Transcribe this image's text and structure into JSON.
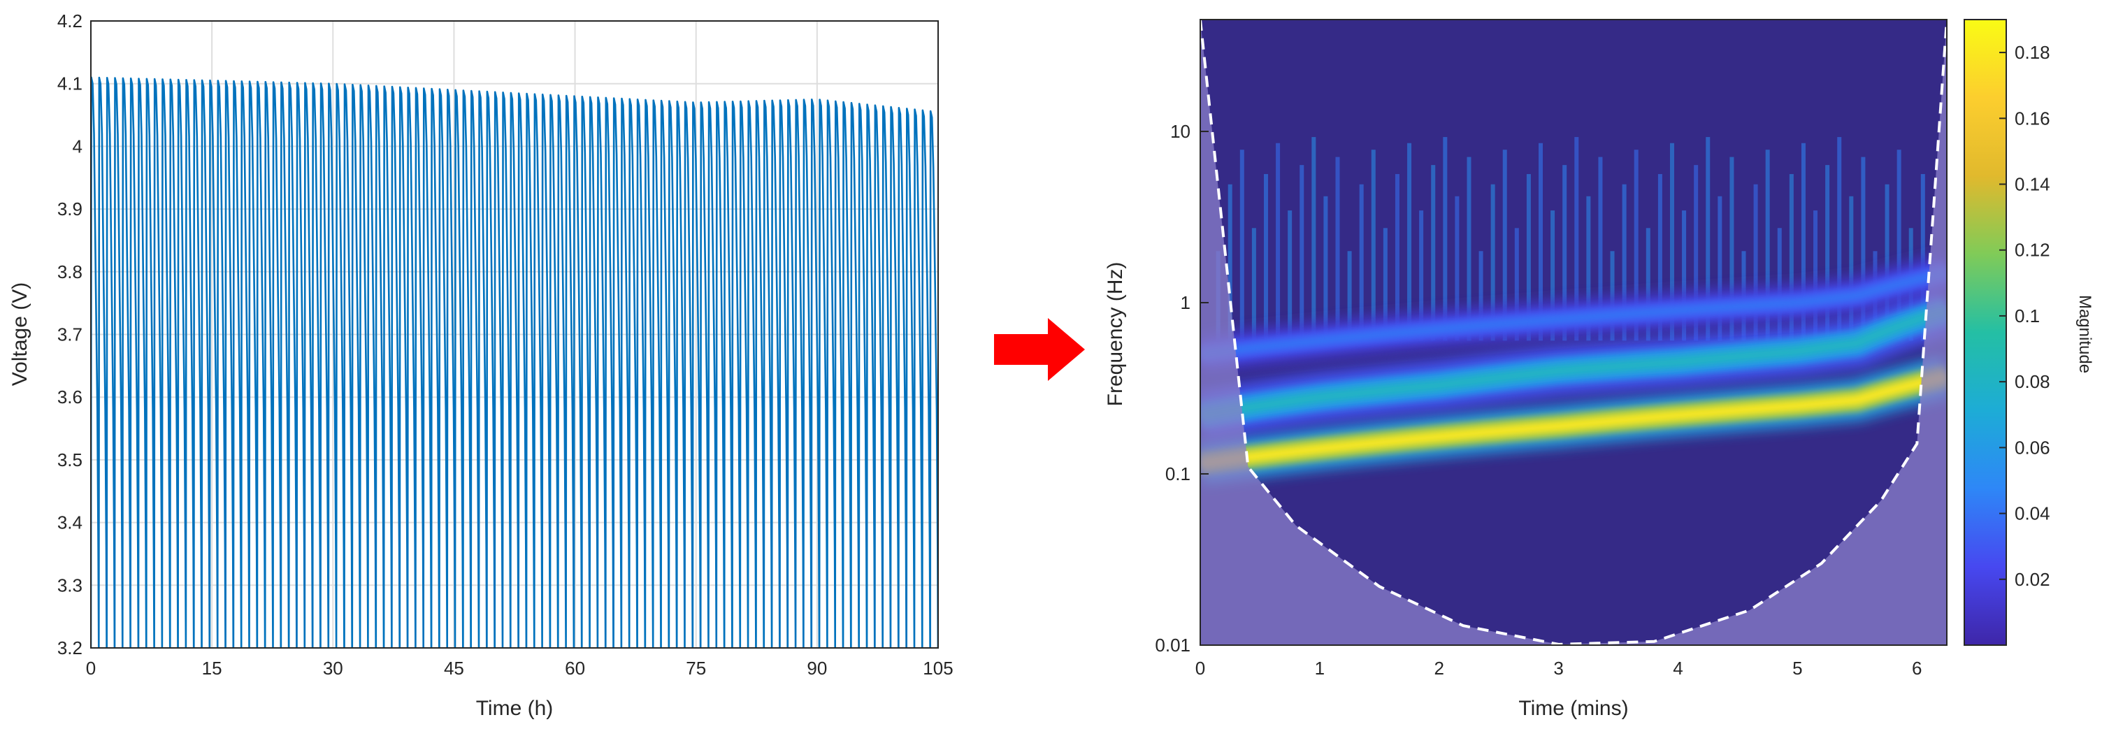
{
  "chart_data": [
    {
      "type": "line",
      "title": "",
      "xlabel": "Time (h)",
      "ylabel": "Voltage (V)",
      "xlim": [
        0,
        105
      ],
      "ylim": [
        3.2,
        4.2
      ],
      "x_ticks": [
        0,
        15,
        30,
        45,
        60,
        75,
        90,
        105
      ],
      "y_ticks": [
        3.2,
        3.3,
        3.4,
        3.5,
        3.6,
        3.7,
        3.8,
        3.9,
        4,
        4.1,
        4.2
      ],
      "grid": true,
      "color": "#0072bd",
      "cycle_count": 107,
      "series": [
        {
          "name": "",
          "upper_envelope": {
            "x": [
              0,
              15,
              30,
              45,
              60,
              75,
              90,
              105
            ],
            "y": [
              4.11,
              4.105,
              4.1,
              4.09,
              4.08,
              4.07,
              4.075,
              4.055
            ]
          },
          "lower_envelope": {
            "x": [
              0,
              105
            ],
            "y": [
              3.2,
              3.2
            ]
          }
        }
      ]
    },
    {
      "type": "heatmap",
      "title": "",
      "xlabel": "Time (mins)",
      "ylabel": "Frequency (Hz)",
      "xlim": [
        0,
        6.25
      ],
      "ylim": [
        0.01,
        45
      ],
      "yscale": "log",
      "x_ticks": [
        0,
        1,
        2,
        3,
        4,
        5,
        6
      ],
      "y_ticks": [
        0.01,
        0.1,
        1,
        10
      ],
      "colorbar": {
        "label": "Magnitude",
        "ticks": [
          0.02,
          0.04,
          0.06,
          0.08,
          0.1,
          0.12,
          0.14,
          0.16,
          0.18
        ],
        "range": [
          0,
          0.19
        ],
        "colormap": [
          "#3e26a8",
          "#4748f0",
          "#2e87f7",
          "#1dacd6",
          "#24bfa4",
          "#80cb58",
          "#e1b92d",
          "#fcce2e",
          "#f9fb15"
        ]
      },
      "ridges": [
        {
          "name": "",
          "time": [
            0,
            1,
            2,
            3,
            4,
            5,
            5.5,
            6.25
          ],
          "freq": [
            0.115,
            0.14,
            0.165,
            0.19,
            0.22,
            0.25,
            0.27,
            0.37
          ],
          "magnitude": 0.18
        },
        {
          "name": "",
          "time": [
            0,
            1,
            2,
            3,
            4,
            5,
            5.5,
            6.25
          ],
          "freq": [
            0.22,
            0.28,
            0.33,
            0.4,
            0.45,
            0.52,
            0.58,
            0.9
          ],
          "magnitude": 0.08
        },
        {
          "name": "",
          "time": [
            0,
            1,
            2,
            3,
            4,
            5,
            5.5,
            6.25
          ],
          "freq": [
            0.5,
            0.6,
            0.7,
            0.8,
            0.9,
            1.0,
            1.1,
            1.5
          ],
          "magnitude": 0.04
        }
      ],
      "cone_of_influence": {
        "time": [
          0,
          0.4,
          0.8,
          1.5,
          2.2,
          3.0,
          3.8,
          4.6,
          5.2,
          5.7,
          6.0,
          6.25
        ],
        "freq": [
          45,
          0.11,
          0.05,
          0.022,
          0.013,
          0.0101,
          0.0105,
          0.016,
          0.03,
          0.07,
          0.15,
          45
        ]
      },
      "background_color": "#352a87",
      "coi_shade_color": "#8a7fc9"
    }
  ],
  "arrow": {
    "color": "#ff0000",
    "icon": "arrow-right-icon"
  }
}
